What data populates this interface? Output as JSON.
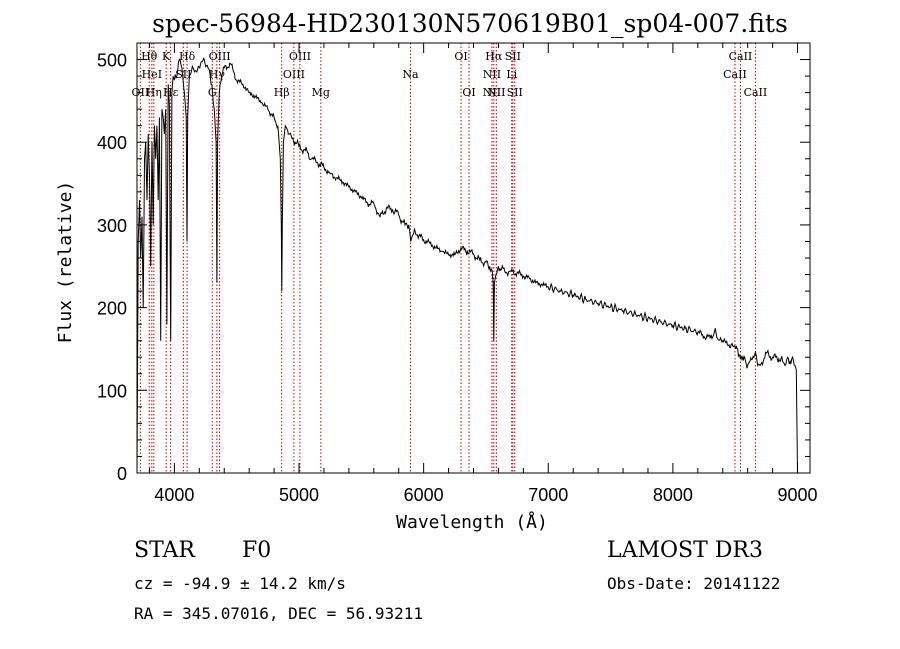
{
  "chart_data": {
    "type": "line",
    "title": "spec-56984-HD230130N570619B01_sp04-007.fits",
    "xlabel": "Wavelength (Å)",
    "ylabel": "Flux (relative)",
    "xlim": [
      3700,
      9100
    ],
    "ylim": [
      0,
      520
    ],
    "xticks": [
      4000,
      5000,
      6000,
      7000,
      8000,
      9000
    ],
    "yticks": [
      0,
      100,
      200,
      300,
      400,
      500
    ],
    "series": [
      {
        "name": "spectrum",
        "x": [
          3700,
          3710,
          3720,
          3730,
          3740,
          3750,
          3760,
          3770,
          3780,
          3790,
          3800,
          3810,
          3820,
          3830,
          3840,
          3850,
          3860,
          3870,
          3880,
          3890,
          3900,
          3910,
          3920,
          3930,
          3940,
          3950,
          3960,
          3970,
          3980,
          3990,
          4000,
          4020,
          4040,
          4060,
          4080,
          4095,
          4101,
          4107,
          4120,
          4150,
          4180,
          4210,
          4240,
          4270,
          4300,
          4320,
          4335,
          4341,
          4347,
          4360,
          4380,
          4400,
          4450,
          4500,
          4550,
          4600,
          4650,
          4700,
          4750,
          4800,
          4830,
          4850,
          4858,
          4862,
          4866,
          4875,
          4890,
          4920,
          4950,
          5000,
          5050,
          5100,
          5150,
          5200,
          5250,
          5300,
          5350,
          5400,
          5450,
          5500,
          5550,
          5600,
          5650,
          5700,
          5750,
          5800,
          5850,
          5880,
          5890,
          5896,
          5905,
          5920,
          5950,
          6000,
          6050,
          6100,
          6150,
          6200,
          6250,
          6300,
          6350,
          6400,
          6450,
          6500,
          6530,
          6550,
          6558,
          6563,
          6568,
          6580,
          6600,
          6650,
          6700,
          6750,
          6800,
          6850,
          6900,
          6950,
          7000,
          7100,
          7200,
          7300,
          7400,
          7500,
          7600,
          7700,
          7800,
          7900,
          8000,
          8100,
          8200,
          8250,
          8300,
          8320,
          8340,
          8360,
          8400,
          8450,
          8498,
          8520,
          8542,
          8560,
          8600,
          8662,
          8680,
          8700,
          8750,
          8800,
          8850,
          8880,
          8900,
          8920,
          8940,
          8960,
          8980,
          8990,
          9000
        ],
        "y": [
          0,
          280,
          330,
          260,
          310,
          200,
          380,
          400,
          330,
          410,
          360,
          250,
          400,
          300,
          420,
          380,
          420,
          330,
          430,
          160,
          440,
          430,
          410,
          440,
          180,
          470,
          445,
          160,
          460,
          480,
          475,
          480,
          500,
          490,
          460,
          430,
          280,
          430,
          480,
          490,
          485,
          495,
          500,
          490,
          470,
          440,
          400,
          230,
          400,
          460,
          480,
          490,
          495,
          475,
          470,
          460,
          455,
          448,
          440,
          430,
          420,
          380,
          300,
          220,
          300,
          400,
          420,
          410,
          405,
          395,
          390,
          380,
          375,
          370,
          362,
          357,
          352,
          346,
          340,
          334,
          326,
          326,
          310,
          320,
          318,
          312,
          300,
          300,
          290,
          280,
          285,
          290,
          288,
          282,
          278,
          272,
          268,
          264,
          264,
          272,
          268,
          265,
          257,
          255,
          250,
          245,
          230,
          160,
          230,
          240,
          250,
          244,
          244,
          242,
          238,
          235,
          230,
          228,
          225,
          220,
          215,
          210,
          205,
          201,
          196,
          192,
          187,
          183,
          178,
          175,
          170,
          165,
          163,
          165,
          175,
          162,
          160,
          155,
          153,
          150,
          138,
          140,
          130,
          146,
          130,
          130,
          145,
          140,
          138,
          135,
          130,
          140,
          135,
          140,
          130,
          125,
          0
        ]
      }
    ],
    "line_markers": [
      {
        "name": "OII",
        "wavelength": 3727,
        "row": 2
      },
      {
        "name": "Hθ",
        "wavelength": 3798,
        "row": 0
      },
      {
        "name": "HeI",
        "wavelength": 3819,
        "row": 1
      },
      {
        "name": "Hη",
        "wavelength": 3835,
        "row": 2
      },
      {
        "name": "K",
        "wavelength": 3934,
        "row": 0
      },
      {
        "name": "Hε",
        "wavelength": 3970,
        "row": 2
      },
      {
        "name": "SII",
        "wavelength": 4072,
        "row": 1
      },
      {
        "name": "Hδ",
        "wavelength": 4102,
        "row": 0
      },
      {
        "name": "G",
        "wavelength": 4304,
        "row": 2
      },
      {
        "name": "Hγ",
        "wavelength": 4341,
        "row": 1
      },
      {
        "name": "OIII",
        "wavelength": 4363,
        "row": 0
      },
      {
        "name": "Hβ",
        "wavelength": 4861,
        "row": 2
      },
      {
        "name": "OIII",
        "wavelength": 4959,
        "row": 1
      },
      {
        "name": "OIII",
        "wavelength": 5007,
        "row": 0
      },
      {
        "name": "Mg",
        "wavelength": 5175,
        "row": 2
      },
      {
        "name": "Na",
        "wavelength": 5894,
        "row": 1
      },
      {
        "name": "OI",
        "wavelength": 6300,
        "row": 0
      },
      {
        "name": "OI",
        "wavelength": 6364,
        "row": 2
      },
      {
        "name": "NII",
        "wavelength": 6548,
        "row": 1
      },
      {
        "name": "NII",
        "wavelength": 6548,
        "row": 2
      },
      {
        "name": "Hα",
        "wavelength": 6563,
        "row": 0
      },
      {
        "name": "NII",
        "wavelength": 6583,
        "row": 2
      },
      {
        "name": "Li",
        "wavelength": 6707,
        "row": 1
      },
      {
        "name": "SII",
        "wavelength": 6716,
        "row": 0
      },
      {
        "name": "SII",
        "wavelength": 6731,
        "row": 2
      },
      {
        "name": "CaII",
        "wavelength": 8498,
        "row": 1
      },
      {
        "name": "CaII",
        "wavelength": 8542,
        "row": 0
      },
      {
        "name": "CaII",
        "wavelength": 8662,
        "row": 2
      }
    ],
    "colors": {
      "spectrum": "#000000",
      "markers": "#c00000",
      "axes": "#000000"
    }
  },
  "info": {
    "object_class": "STAR",
    "subclass": "F0",
    "survey": "LAMOST DR3",
    "redshift": "cz = -94.9 ± 14.2 km/s",
    "obs_date": "Obs-Date: 20141122",
    "coords": "RA = 345.07016, DEC =  56.93211"
  }
}
